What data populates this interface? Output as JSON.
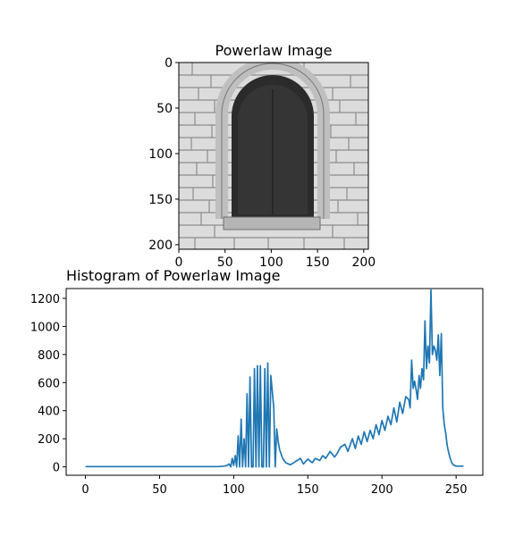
{
  "figure": {
    "image_panel": {
      "title": "Powerlaw Image",
      "xticks": [
        "0",
        "50",
        "100",
        "150",
        "200"
      ],
      "yticks": [
        "0",
        "50",
        "100",
        "150",
        "200"
      ],
      "image_description": "Grayscale photo of an arched window set in a light stone block wall",
      "x_range": [
        0,
        205
      ],
      "y_range": [
        0,
        205
      ]
    },
    "colors": {
      "line": "#1f77b4",
      "axes": "#000000",
      "background": "#ffffff"
    }
  },
  "chart_data": {
    "type": "line",
    "title": "Histogram of Powerlaw Image",
    "xlabel": "",
    "ylabel": "",
    "xlim": [
      -13,
      268
    ],
    "ylim": [
      -60,
      1270
    ],
    "xticks": [
      "0",
      "50",
      "100",
      "150",
      "200",
      "250"
    ],
    "yticks": [
      "0",
      "200",
      "400",
      "600",
      "800",
      "1000",
      "1200"
    ],
    "grid": false,
    "series": [
      {
        "x": [
          0,
          20,
          40,
          60,
          80,
          90,
          93,
          95,
          97,
          98,
          99,
          100,
          101,
          102,
          103,
          104,
          105,
          106,
          107,
          108,
          109,
          110,
          111,
          112,
          113,
          114,
          115,
          116,
          117,
          118,
          119,
          120,
          121,
          122,
          123,
          124,
          125,
          126,
          127,
          128,
          129,
          130,
          131,
          132,
          133,
          135,
          138,
          140,
          142,
          145,
          147,
          150,
          153,
          155,
          158,
          160,
          162,
          165,
          168,
          170,
          172,
          175,
          177,
          180,
          182,
          184,
          186,
          188,
          190,
          192,
          194,
          196,
          198,
          200,
          202,
          204,
          206,
          208,
          210,
          212,
          214,
          216,
          218,
          219,
          220,
          221,
          222,
          223,
          224,
          225,
          226,
          227,
          228,
          229,
          230,
          231,
          232,
          233,
          234,
          235,
          236,
          237,
          238,
          239,
          240,
          241,
          242,
          243,
          244,
          245,
          246,
          247,
          248,
          250,
          252,
          253,
          254,
          255
        ],
        "values": [
          2,
          2,
          2,
          2,
          2,
          2,
          5,
          8,
          20,
          0,
          60,
          10,
          80,
          0,
          220,
          0,
          340,
          0,
          200,
          0,
          520,
          0,
          640,
          0,
          0,
          700,
          0,
          720,
          0,
          720,
          0,
          0,
          700,
          0,
          740,
          0,
          650,
          540,
          420,
          0,
          270,
          180,
          120,
          90,
          60,
          30,
          15,
          25,
          40,
          60,
          20,
          55,
          30,
          60,
          45,
          80,
          60,
          110,
          70,
          100,
          140,
          160,
          110,
          200,
          130,
          220,
          160,
          250,
          180,
          260,
          200,
          300,
          230,
          330,
          260,
          360,
          300,
          420,
          320,
          460,
          380,
          500,
          480,
          420,
          760,
          560,
          610,
          550,
          480,
          650,
          560,
          700,
          620,
          1040,
          700,
          860,
          740,
          1260,
          800,
          860,
          830,
          760,
          940,
          650,
          950,
          420,
          300,
          240,
          150,
          100,
          60,
          30,
          15,
          5,
          5,
          5,
          5,
          5
        ]
      }
    ]
  }
}
